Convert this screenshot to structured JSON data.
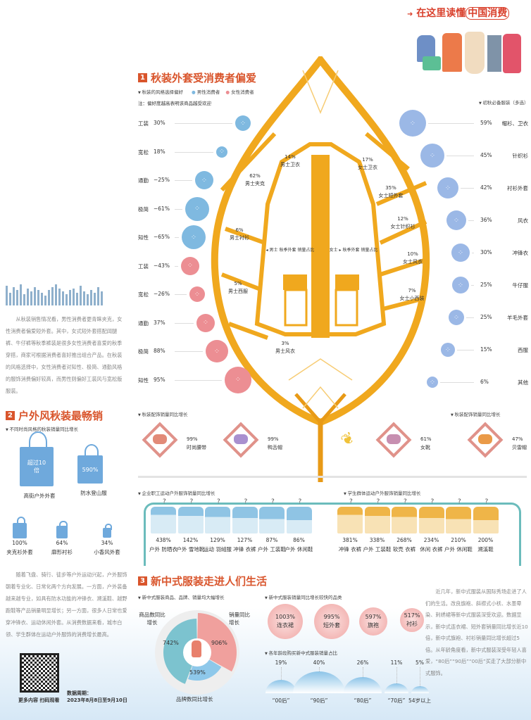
{
  "header": {
    "title_prefix": "在这里读懂",
    "title_highlight": "中国消费"
  },
  "section1": {
    "number": "1",
    "title": "秋装外套受消费者偏爱",
    "subtitle": "秋装的风格选择偏好",
    "legend_male": "男性消费者",
    "legend_female": "女性消费者",
    "note": "注：偏好度越高表明该商品越受欢迎",
    "colors": {
      "male": "#7fb9e0",
      "female": "#ec8e93",
      "leaf": "#f0a81e"
    },
    "styles": [
      {
        "label": "工装",
        "value": "30%",
        "gender": "male"
      },
      {
        "label": "宽松",
        "value": "18%",
        "gender": "male"
      },
      {
        "label": "通勤",
        "value": "−25%",
        "gender": "male"
      },
      {
        "label": "极简",
        "value": "−61%",
        "gender": "male"
      },
      {
        "label": "知性",
        "value": "−65%",
        "gender": "male"
      },
      {
        "label": "工装",
        "value": "−43%",
        "gender": "female"
      },
      {
        "label": "宽松",
        "value": "−26%",
        "gender": "female"
      },
      {
        "label": "通勤",
        "value": "37%",
        "gender": "female"
      },
      {
        "label": "极简",
        "value": "88%",
        "gender": "female"
      },
      {
        "label": "知性",
        "value": "95%",
        "gender": "female"
      }
    ],
    "men_label": "◂ 男士 秋季外套 销量占比",
    "women_label": "女士 ▸ 秋季外套 销量占比",
    "men_coats": [
      {
        "value": "14%",
        "name": "男士卫衣"
      },
      {
        "value": "62%",
        "name": "男士夹克"
      },
      {
        "value": "6%",
        "name": "男士衬衫"
      },
      {
        "value": "5%",
        "name": "男士西服"
      },
      {
        "value": "3%",
        "name": "男士风衣"
      }
    ],
    "women_coats": [
      {
        "value": "17%",
        "name": "女士卫衣"
      },
      {
        "value": "35%",
        "name": "女士短外套"
      },
      {
        "value": "12%",
        "name": "女士针织衫"
      },
      {
        "value": "10%",
        "name": "女士风衣"
      },
      {
        "value": "7%",
        "name": "女士小西装"
      }
    ],
    "essentials_title": "初秋必备服装（多选）",
    "essentials": [
      {
        "value": "59%",
        "name": "帽衫、卫衣"
      },
      {
        "value": "45%",
        "name": "针织衫"
      },
      {
        "value": "42%",
        "name": "衬衫外套"
      },
      {
        "value": "36%",
        "name": "风衣"
      },
      {
        "value": "30%",
        "name": "冲锋衣"
      },
      {
        "value": "25%",
        "name": "牛仔服"
      },
      {
        "value": "25%",
        "name": "羊毛外套"
      },
      {
        "value": "15%",
        "name": "西服"
      },
      {
        "value": "6%",
        "name": "其他"
      }
    ],
    "acc_title_left": "秋装配饰销量同比增长",
    "acc_title_right": "秋装配饰销量同比增长",
    "accessories": [
      {
        "value": "99%",
        "name": "时尚腰带",
        "icon": "belt-icon"
      },
      {
        "value": "99%",
        "name": "鸭舌帽",
        "icon": "cap-icon"
      },
      {
        "value": "61%",
        "name": "女靴",
        "icon": "boot-icon"
      },
      {
        "value": "47%",
        "name": "贝雷帽",
        "icon": "beret-icon"
      }
    ],
    "paragraph": "从秋装销售情况看，男性消费者更青睐夹克，女性消费者偏爱短外套。其中，女式短外套搭配阔腿裤、牛仔裤等秋季裤装是很多女性消费者喜爱的秋季穿搭，商家可根据消费者喜好推出组合产品。在秋装的风格选择中，女性消费者对知性、极简、通勤风格的服饰消费偏好较高，而男性则偏好工装风与宽松版服装。"
  },
  "section2": {
    "number": "2",
    "title": "户外风秋装最畅销",
    "subtitle": "不同时尚风格的秋装销量同比增长",
    "bags": [
      {
        "value": "超过10倍",
        "name": "高街户外外套"
      },
      {
        "value": "590%",
        "name": "防水登山服"
      },
      {
        "value": "100%",
        "name": "夹克衫外套"
      },
      {
        "value": "64%",
        "name": "廓形衬衫"
      },
      {
        "value": "34%",
        "name": "小香风外套"
      }
    ],
    "employee_title": "企业职工运动户外服饰销量同比增长",
    "employee": [
      {
        "value": "438%",
        "name": "户外 防晒衣"
      },
      {
        "value": "142%",
        "name": "户外 雪地靴"
      },
      {
        "value": "129%",
        "name": "运动 羽绒服"
      },
      {
        "value": "127%",
        "name": "冲锋 衣裤"
      },
      {
        "value": "87%",
        "name": "户外 工装鞋"
      },
      {
        "value": "86%",
        "name": "户外 休闲鞋"
      }
    ],
    "student_title": "学生群体运动户外服饰销量同比增长",
    "student": [
      {
        "value": "381%",
        "name": "冲锋 衣裤"
      },
      {
        "value": "338%",
        "name": "户外 工装鞋"
      },
      {
        "value": "268%",
        "name": "软壳 衣裤"
      },
      {
        "value": "234%",
        "name": "休闲 衣裤"
      },
      {
        "value": "210%",
        "name": "户外 休闲鞋"
      },
      {
        "value": "200%",
        "name": "溯溪鞋"
      }
    ],
    "paragraph": "随着飞盘、骑行、徒步等户外运动兴起，户外服饰朝着专业化、日常化两个方向发展。一方面，户外装备越来越专业，如具有防水功能的冲锋衣、溯溪鞋、越野跑鞋等产品销量明显增长；另一方面，很多人日常也爱穿冲锋衣、运动休闲外套。从消费数据来看，城市白领、学生群体在运动户外服饰的消费增长最高。"
  },
  "section3": {
    "number": "3",
    "title": "新中式服装走进人们生活",
    "donut_title": "新中式服装商品、品牌、销量均大幅增长",
    "donut": [
      {
        "label": "商品数同比增长",
        "value": "742%",
        "color": "#7cc3cf"
      },
      {
        "label": "销量同比增长",
        "value": "906%",
        "color": "#f0a09d"
      },
      {
        "label": "品牌数同比增长",
        "value": "539%",
        "color": "#8ec8ea"
      }
    ],
    "fast_title": "新中式服装销量同比增长较快的品类",
    "fast": [
      {
        "value": "1003%",
        "name": "连衣裙"
      },
      {
        "value": "995%",
        "name": "短外套"
      },
      {
        "value": "597%",
        "name": "旗袍"
      },
      {
        "value": "517%",
        "name": "衬衫"
      }
    ],
    "age_title": "各年龄段购买新中式服装销量占比",
    "ages": [
      {
        "value": "19%",
        "name": "“00后”",
        "pct": 19
      },
      {
        "value": "40%",
        "name": "“90后”",
        "pct": 40
      },
      {
        "value": "26%",
        "name": "“80后”",
        "pct": 26
      },
      {
        "value": "11%",
        "name": "“70后”",
        "pct": 11
      },
      {
        "value": "5%",
        "name": "54岁以上",
        "pct": 5
      }
    ],
    "paragraph": "近几年，新中式服装从国际秀场走进了人们的生活。改良旗袍、斜襟式小袄、水墨晕染、刺绣裙等新中式服装深受欢迎。数据显示，新中式连衣裙、短外套销量同比增长近10倍，新中式旗袍、衬衫销量同比增长超过5倍。从年龄角度看，新中式服装深受年轻人喜爱，“80后”“90后”“00后”买走了大部分新中式服饰。"
  },
  "footer": {
    "qr_caption": "更多内容 扫码观看",
    "period_label": "数据周期：",
    "period": "2023年8月8日至9月10日"
  }
}
